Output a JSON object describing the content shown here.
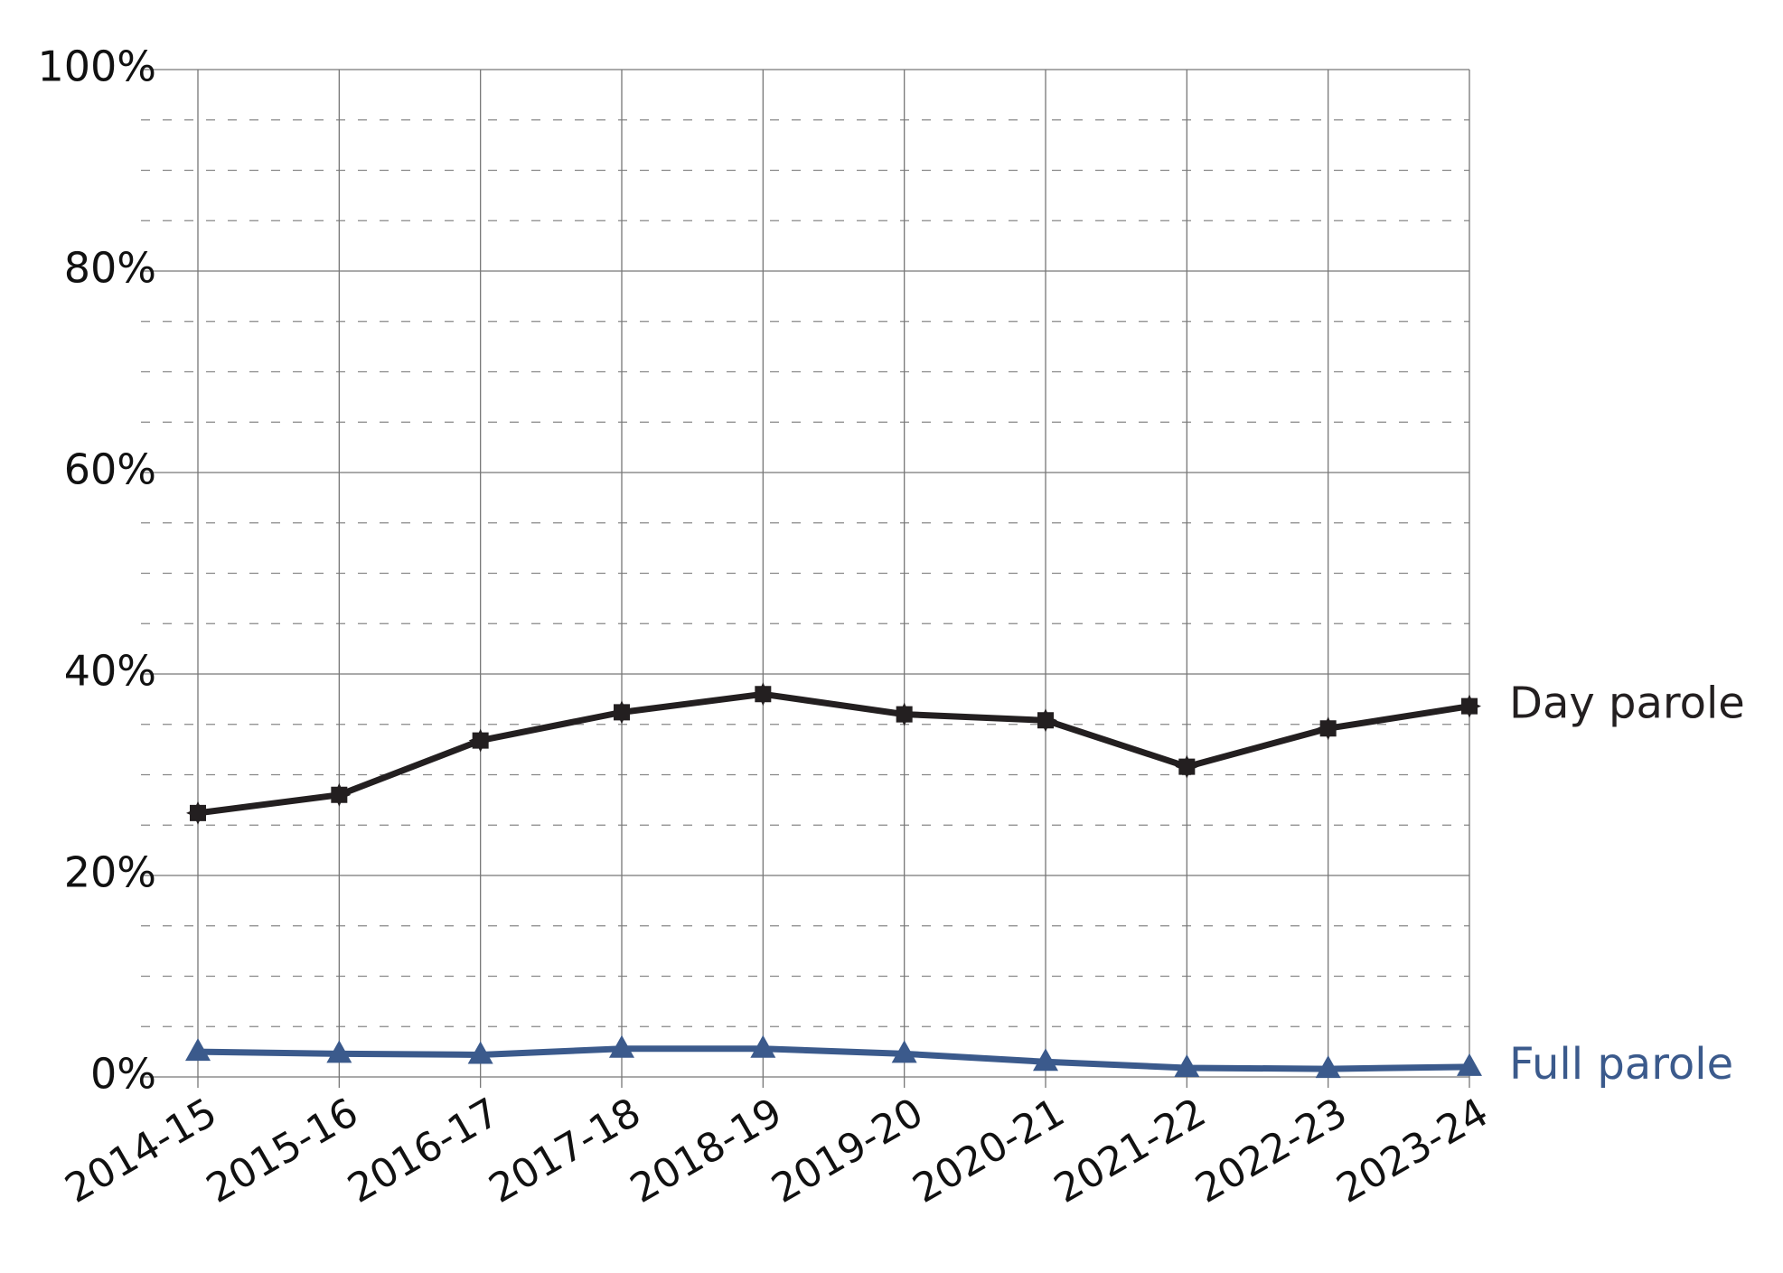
{
  "chart_data": {
    "type": "line",
    "categories": [
      "2014-15",
      "2015-16",
      "2016-17",
      "2017-18",
      "2018-19",
      "2019-20",
      "2020-21",
      "2021-22",
      "2022-23",
      "2023-24"
    ],
    "series": [
      {
        "name": "Day parole",
        "color": "#231f20",
        "marker": "star",
        "values": [
          26.2,
          28.0,
          33.4,
          36.2,
          38.0,
          36.0,
          35.4,
          30.8,
          34.6,
          36.8
        ]
      },
      {
        "name": "Full parole",
        "color": "#3b5a8c",
        "marker": "triangle",
        "values": [
          2.5,
          2.3,
          2.2,
          2.8,
          2.8,
          2.3,
          1.5,
          0.9,
          0.8,
          1.0
        ]
      }
    ],
    "ylim": [
      0,
      100
    ],
    "yticks": [
      {
        "value": 0,
        "label": "0%"
      },
      {
        "value": 20,
        "label": "20%"
      },
      {
        "value": 40,
        "label": "40%"
      },
      {
        "value": 60,
        "label": "60%"
      },
      {
        "value": 80,
        "label": "80%"
      },
      {
        "value": 100,
        "label": "100%"
      }
    ],
    "minor_yticks": [
      5,
      10,
      15,
      25,
      30,
      35,
      45,
      50,
      55,
      65,
      70,
      75,
      85,
      90,
      95
    ],
    "grid": true,
    "legend": "line-end"
  }
}
